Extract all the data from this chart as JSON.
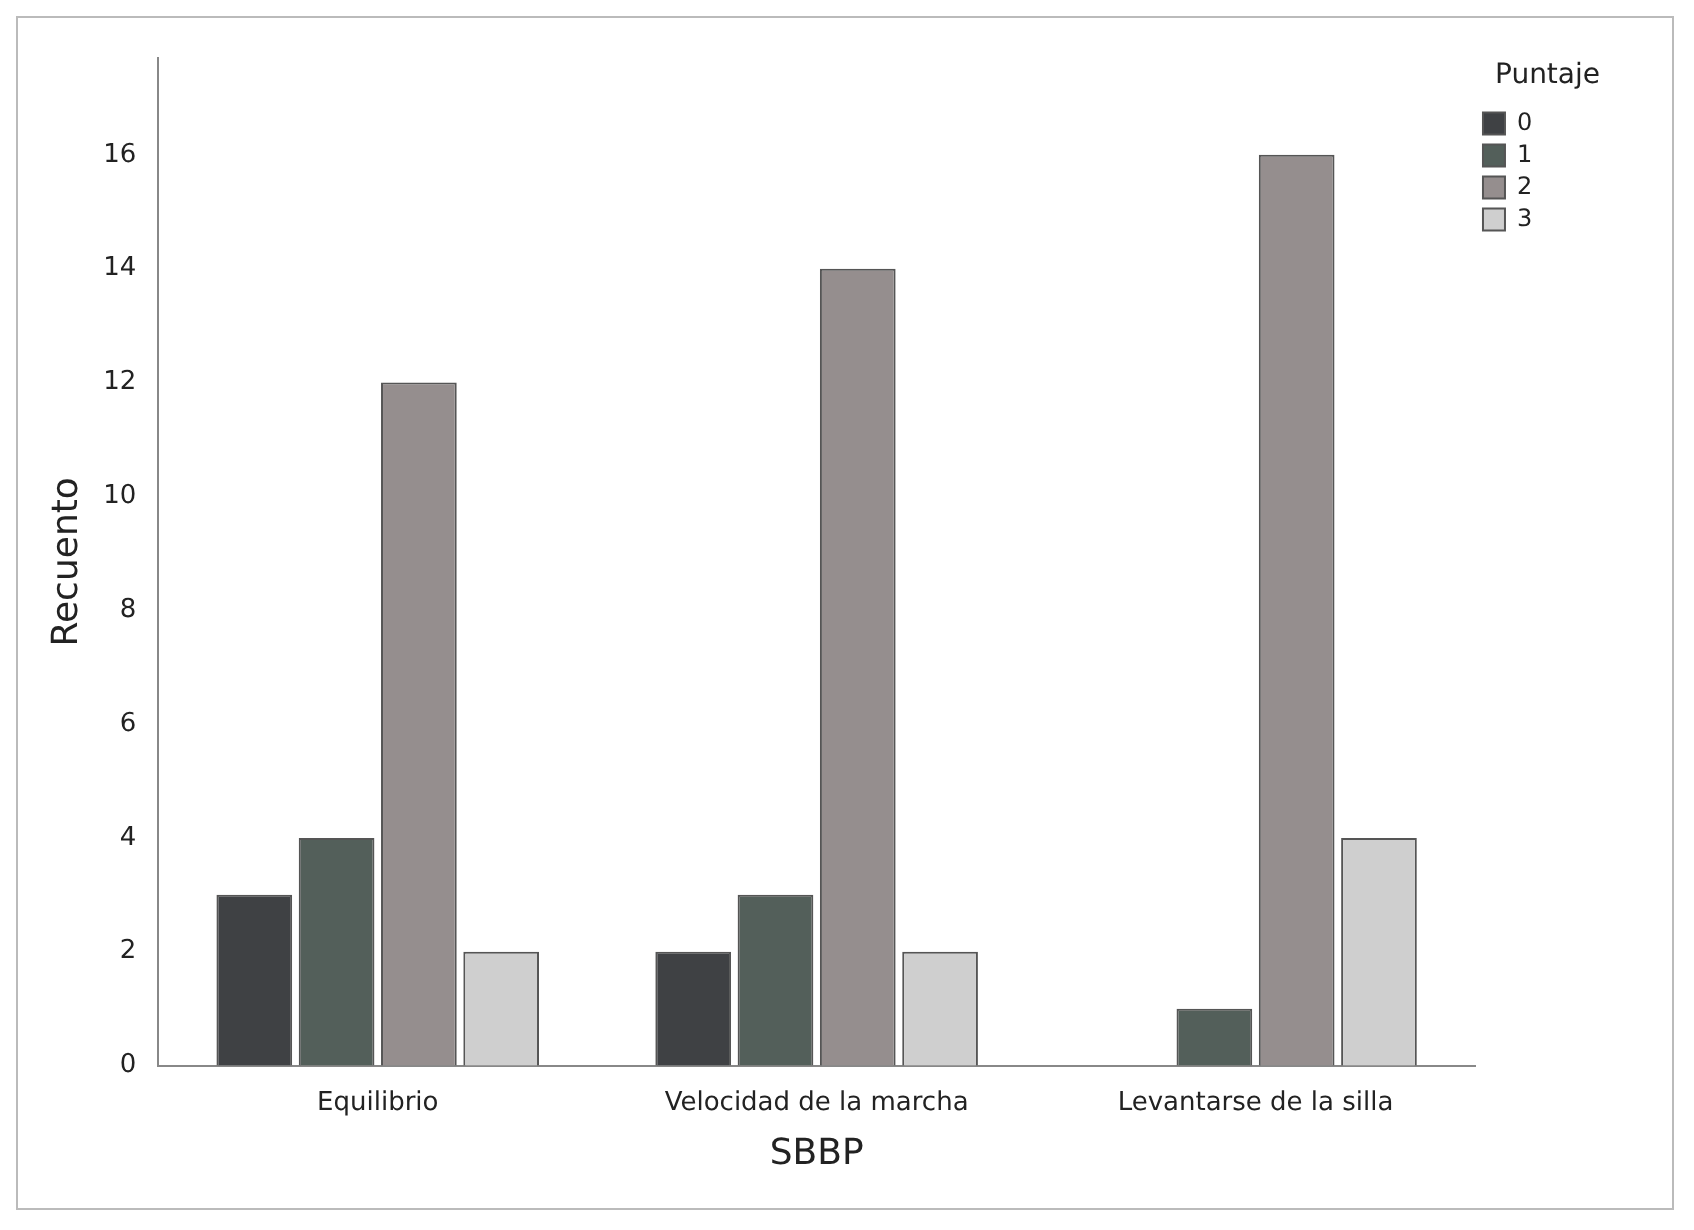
{
  "chart_data": {
    "type": "bar",
    "xlabel": "SBBP",
    "ylabel": "Recuento",
    "legend_title": "Puntaje",
    "categories": [
      "Equilibrio",
      "Velocidad de la marcha",
      "Levantarse de la silla"
    ],
    "series": [
      {
        "name": "0",
        "color": "#3f4144",
        "values": [
          3,
          2,
          0
        ]
      },
      {
        "name": "1",
        "color": "#535f5a",
        "values": [
          4,
          3,
          1
        ]
      },
      {
        "name": "2",
        "color": "#958e8e",
        "values": [
          12,
          14,
          16
        ]
      },
      {
        "name": "3",
        "color": "#cfcfcf",
        "values": [
          2,
          2,
          4
        ]
      }
    ],
    "ylim": [
      0,
      17.7
    ],
    "yticks": [
      0,
      2,
      4,
      6,
      8,
      10,
      12,
      14,
      16
    ],
    "grid": false,
    "legend": "top right"
  }
}
